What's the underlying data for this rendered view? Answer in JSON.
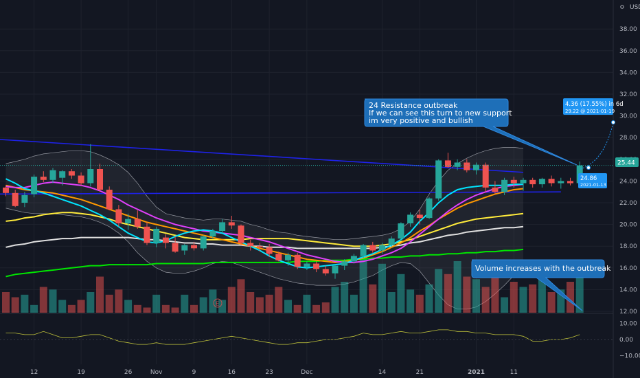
{
  "chart_data": {
    "type": "candlestick",
    "currency": "USD",
    "y_ticks": [
      38,
      36,
      34,
      32,
      30,
      28,
      26,
      24,
      22,
      20,
      18,
      16,
      14,
      12
    ],
    "y_tick_labels": [
      "38.00",
      "36.00",
      "34.00",
      "32.00",
      "30.00",
      "28.00",
      "26.00",
      "24.00",
      "22.00",
      "20.00",
      "18.00",
      "16.00",
      "14.00",
      "12.00"
    ],
    "osc_ticks": [
      10,
      0,
      -10
    ],
    "osc_tick_labels": [
      "10.00",
      "0.00",
      "−10.00"
    ],
    "x_tick_labels": [
      {
        "i": 3,
        "label": "12"
      },
      {
        "i": 8,
        "label": "19"
      },
      {
        "i": 13,
        "label": "26"
      },
      {
        "i": 16,
        "label": "Nov"
      },
      {
        "i": 20,
        "label": "9"
      },
      {
        "i": 24,
        "label": "16"
      },
      {
        "i": 28,
        "label": "23"
      },
      {
        "i": 32,
        "label": "Dec"
      },
      {
        "i": 40,
        "label": "14"
      },
      {
        "i": 44,
        "label": "21"
      },
      {
        "i": 50,
        "label": "2021",
        "bold": true
      },
      {
        "i": 54,
        "label": "11"
      }
    ],
    "candles": [
      [
        23.4,
        23.6,
        22.6,
        22.9
      ],
      [
        22.9,
        23.2,
        21.6,
        21.7
      ],
      [
        22.0,
        23.0,
        21.6,
        22.7
      ],
      [
        22.8,
        24.6,
        22.5,
        24.4
      ],
      [
        24.4,
        24.9,
        23.9,
        24.1
      ],
      [
        24.1,
        25.2,
        23.8,
        25.0
      ],
      [
        24.3,
        25.0,
        23.6,
        24.9
      ],
      [
        24.9,
        25.1,
        24.2,
        24.5
      ],
      [
        24.5,
        24.8,
        23.6,
        23.8
      ],
      [
        23.8,
        27.4,
        23.5,
        25.1
      ],
      [
        25.1,
        25.6,
        23.0,
        23.2
      ],
      [
        23.2,
        23.5,
        21.3,
        21.4
      ],
      [
        21.4,
        21.8,
        19.8,
        20.1
      ],
      [
        20.1,
        21.0,
        19.5,
        20.5
      ],
      [
        20.5,
        21.3,
        19.6,
        19.8
      ],
      [
        19.8,
        20.2,
        18.1,
        18.3
      ],
      [
        18.3,
        19.8,
        17.9,
        19.6
      ],
      [
        18.8,
        19.1,
        17.8,
        18.3
      ],
      [
        18.3,
        18.9,
        17.4,
        17.5
      ],
      [
        17.6,
        18.2,
        17.2,
        18.1
      ],
      [
        18.1,
        18.4,
        17.6,
        17.8
      ],
      [
        17.8,
        19.0,
        17.6,
        18.9
      ],
      [
        18.9,
        19.6,
        18.7,
        19.4
      ],
      [
        19.4,
        20.5,
        19.2,
        20.2
      ],
      [
        20.2,
        20.8,
        19.6,
        19.9
      ],
      [
        19.9,
        20.0,
        18.1,
        18.3
      ],
      [
        18.3,
        18.6,
        17.6,
        18.0
      ],
      [
        18.0,
        18.3,
        17.5,
        17.9
      ],
      [
        17.9,
        18.2,
        17.0,
        17.3
      ],
      [
        17.3,
        17.5,
        16.6,
        16.7
      ],
      [
        16.7,
        17.4,
        16.2,
        17.2
      ],
      [
        17.2,
        17.4,
        15.9,
        16.1
      ],
      [
        16.1,
        16.6,
        15.8,
        16.4
      ],
      [
        16.4,
        16.6,
        15.6,
        15.9
      ],
      [
        15.9,
        16.2,
        15.3,
        15.5
      ],
      [
        15.5,
        16.3,
        15.0,
        16.2
      ],
      [
        16.2,
        16.8,
        15.8,
        16.6
      ],
      [
        16.6,
        17.3,
        16.4,
        17.1
      ],
      [
        17.1,
        18.2,
        16.9,
        18.1
      ],
      [
        18.1,
        18.4,
        17.4,
        17.6
      ],
      [
        17.6,
        18.3,
        17.3,
        18.1
      ],
      [
        18.1,
        18.9,
        17.9,
        18.7
      ],
      [
        18.7,
        20.2,
        18.5,
        20.1
      ],
      [
        20.1,
        21.1,
        19.8,
        20.9
      ],
      [
        20.9,
        21.4,
        20.0,
        20.6
      ],
      [
        20.6,
        22.5,
        20.5,
        22.4
      ],
      [
        22.4,
        26.0,
        22.2,
        25.9
      ],
      [
        25.9,
        26.6,
        25.2,
        25.3
      ],
      [
        25.3,
        26.0,
        25.0,
        25.7
      ],
      [
        25.7,
        26.0,
        24.8,
        25.0
      ],
      [
        25.0,
        25.7,
        24.6,
        25.5
      ],
      [
        25.5,
        25.7,
        23.0,
        23.4
      ],
      [
        23.4,
        24.0,
        22.8,
        23.0
      ],
      [
        23.0,
        24.3,
        22.7,
        24.1
      ],
      [
        24.1,
        24.4,
        23.4,
        23.8
      ],
      [
        23.8,
        24.3,
        23.1,
        24.1
      ],
      [
        24.1,
        24.3,
        23.4,
        23.7
      ],
      [
        23.7,
        24.3,
        23.4,
        24.2
      ],
      [
        24.2,
        24.5,
        23.5,
        23.8
      ],
      [
        23.8,
        24.3,
        23.3,
        24.0
      ],
      [
        24.0,
        24.3,
        23.6,
        23.8
      ],
      [
        23.8,
        25.8,
        23.6,
        25.44
      ]
    ],
    "volume": [
      11.7,
      11.5,
      11.6,
      11.2,
      11.9,
      11.8,
      11.4,
      11.2,
      11.4,
      11.7,
      12.3,
      11.6,
      11.8,
      11.4,
      11.2,
      11.1,
      11.6,
      11.2,
      11.1,
      11.6,
      11.2,
      11.5,
      11.8,
      11.4,
      11.9,
      12.2,
      11.7,
      11.5,
      11.6,
      11.9,
      11.4,
      11.2,
      11.6,
      11.2,
      11.3,
      11.9,
      12.1,
      11.6,
      13.1,
      12.0,
      12.8,
      11.7,
      12.4,
      11.8,
      11.6,
      12.0,
      12.6,
      12.4,
      12.9,
      12.3,
      12.2,
      11.9,
      12.6,
      11.5,
      12.1,
      11.9,
      12.0,
      12.2,
      11.7,
      11.8,
      12.1,
      12.4
    ],
    "volume_max": 12.5,
    "moving_averages": [
      {
        "color": "#00e5ff",
        "values": [
          24.2,
          23.8,
          23.3,
          23.1,
          22.9,
          22.6,
          22.3,
          22.0,
          21.7,
          21.3,
          20.9,
          20.4,
          19.8,
          19.2,
          18.8,
          18.4,
          18.3,
          18.5,
          18.9,
          19.2,
          19.4,
          19.5,
          19.4,
          19.2,
          18.8,
          18.4,
          18.0,
          17.6,
          17.1,
          16.7,
          16.4,
          16.1,
          16.0,
          16.1,
          16.2,
          16.3,
          16.4,
          16.7,
          17.0,
          17.3,
          17.7,
          18.1,
          18.6,
          19.3,
          20.3,
          21.1,
          22.0,
          22.7,
          23.2,
          23.4,
          23.5,
          23.6,
          23.6,
          23.6,
          23.7,
          23.7
        ]
      },
      {
        "color": "#e040fb",
        "values": [
          23.5,
          23.4,
          23.4,
          23.6,
          23.8,
          23.9,
          23.8,
          23.7,
          23.6,
          23.4,
          23.1,
          22.7,
          22.3,
          21.8,
          21.4,
          21.0,
          20.6,
          20.3,
          20.0,
          19.8,
          19.6,
          19.4,
          19.3,
          19.2,
          19.1,
          19.0,
          18.8,
          18.6,
          18.4,
          18.1,
          17.8,
          17.5,
          17.2,
          17.0,
          16.8,
          16.6,
          16.5,
          16.5,
          16.6,
          16.8,
          17.1,
          17.4,
          17.8,
          18.4,
          19.1,
          19.8,
          20.5,
          21.2,
          21.8,
          22.3,
          22.7,
          23.0,
          23.3,
          23.5,
          23.6,
          23.7
        ]
      },
      {
        "color": "#ff9800",
        "values": [
          23.6,
          23.4,
          23.2,
          23.1,
          23.0,
          22.9,
          22.7,
          22.5,
          22.3,
          22.0,
          21.7,
          21.4,
          21.1,
          20.8,
          20.5,
          20.2,
          20.0,
          19.8,
          19.6,
          19.4,
          19.2,
          19.0,
          18.8,
          18.6,
          18.4,
          18.2,
          18.0,
          17.8,
          17.6,
          17.4,
          17.2,
          17.0,
          16.8,
          16.7,
          16.6,
          16.5,
          16.6,
          16.7,
          16.9,
          17.2,
          17.5,
          17.9,
          18.3,
          18.8,
          19.4,
          19.9,
          20.5,
          21.0,
          21.5,
          21.9,
          22.2,
          22.5,
          22.8,
          23.0,
          23.2,
          23.3
        ]
      },
      {
        "color": "#ffeb3b",
        "values": [
          20.3,
          20.4,
          20.6,
          20.7,
          20.9,
          21.0,
          21.1,
          21.1,
          21.0,
          20.9,
          20.7,
          20.5,
          20.2,
          20.0,
          19.8,
          19.6,
          19.4,
          19.2,
          19.0,
          18.8,
          18.7,
          18.6,
          18.6,
          18.6,
          18.6,
          18.6,
          18.7,
          18.7,
          18.7,
          18.7,
          18.7,
          18.6,
          18.5,
          18.4,
          18.3,
          18.2,
          18.1,
          18.0,
          18.0,
          18.0,
          18.1,
          18.2,
          18.4,
          18.6,
          18.9,
          19.2,
          19.5,
          19.8,
          20.1,
          20.3,
          20.5,
          20.6,
          20.7,
          20.8,
          20.9,
          21.0
        ]
      },
      {
        "color": "#e0e0e0",
        "values": [
          17.9,
          18.1,
          18.2,
          18.4,
          18.5,
          18.6,
          18.7,
          18.7,
          18.8,
          18.8,
          18.8,
          18.8,
          18.8,
          18.8,
          18.7,
          18.6,
          18.6,
          18.5,
          18.4,
          18.3,
          18.3,
          18.2,
          18.2,
          18.1,
          18.1,
          18.1,
          18.0,
          18.0,
          17.9,
          17.9,
          17.9,
          17.8,
          17.8,
          17.8,
          17.8,
          17.8,
          17.8,
          17.8,
          17.8,
          17.8,
          17.9,
          18.0,
          18.1,
          18.3,
          18.4,
          18.6,
          18.8,
          19.0,
          19.1,
          19.3,
          19.4,
          19.5,
          19.6,
          19.7,
          19.7,
          19.8
        ]
      },
      {
        "color": "#00e600",
        "values": [
          15.2,
          15.4,
          15.5,
          15.6,
          15.7,
          15.8,
          15.9,
          16.0,
          16.1,
          16.2,
          16.2,
          16.3,
          16.3,
          16.3,
          16.3,
          16.3,
          16.4,
          16.4,
          16.4,
          16.4,
          16.4,
          16.4,
          16.5,
          16.5,
          16.5,
          16.5,
          16.5,
          16.5,
          16.5,
          16.5,
          16.5,
          16.6,
          16.6,
          16.6,
          16.7,
          16.7,
          16.7,
          16.8,
          16.8,
          16.9,
          16.9,
          17.0,
          17.0,
          17.1,
          17.1,
          17.2,
          17.2,
          17.3,
          17.3,
          17.4,
          17.4,
          17.5,
          17.5,
          17.6,
          17.6,
          17.7
        ]
      }
    ],
    "bollinger_upper": [
      25.6,
      25.8,
      26.0,
      26.3,
      26.5,
      26.6,
      26.7,
      26.8,
      26.8,
      26.7,
      26.4,
      26.0,
      25.5,
      24.8,
      23.8,
      22.6,
      21.6,
      21.0,
      20.8,
      20.6,
      20.5,
      20.4,
      20.5,
      20.5,
      20.4,
      20.3,
      20.0,
      19.8,
      19.5,
      19.3,
      19.2,
      19.0,
      18.9,
      18.8,
      18.7,
      18.6,
      18.6,
      18.7,
      18.8,
      18.9,
      19.0,
      19.2,
      19.6,
      20.3,
      21.4,
      22.8,
      24.0,
      25.0,
      25.6,
      26.1,
      26.5,
      26.8,
      27.0,
      27.1,
      27.1,
      27.0
    ],
    "bollinger_lower": [
      21.5,
      21.3,
      21.1,
      21.0,
      21.0,
      21.0,
      20.9,
      20.8,
      20.7,
      20.5,
      20.2,
      19.8,
      19.2,
      18.4,
      17.4,
      16.6,
      16.0,
      15.6,
      15.5,
      15.5,
      15.7,
      16.0,
      16.4,
      16.6,
      16.5,
      16.2,
      15.9,
      15.6,
      15.3,
      15.0,
      14.8,
      14.6,
      14.5,
      14.4,
      14.4,
      14.4,
      14.5,
      14.7,
      15.0,
      15.3,
      15.8,
      16.2,
      16.5,
      16.4,
      15.7,
      14.6,
      13.5,
      12.6,
      12.2,
      12.2,
      12.4,
      12.9,
      13.6,
      14.4,
      15.3,
      16.2
    ]
  },
  "resistance_lines": [
    {
      "from": [
        -2,
        27.9
      ],
      "to": [
        55,
        24.8
      ]
    },
    {
      "from": [
        -2,
        22.8
      ],
      "to": [
        59,
        23.0
      ]
    }
  ],
  "price_label": "25.44",
  "currency_label": "USD",
  "annotations": {
    "resistance": [
      "24 Resistance outbreak",
      "If we can see this turn to new support",
      "im very positive and bullish"
    ],
    "volume": "Volume increases with the outbreak",
    "projection_line1": "4.36 (17.55%) in 6d",
    "projection_line2": "29.22 @ 2021-01-19",
    "point_value": "24.86",
    "point_date": "2021-01-13"
  },
  "oscillator": [
    4,
    4,
    3,
    3,
    5,
    3,
    1,
    1,
    2,
    3,
    3,
    1,
    -1,
    -2,
    -3,
    -3,
    -2,
    -3,
    -3,
    -3,
    -2,
    -1,
    0,
    1,
    2,
    1,
    0,
    -1,
    -2,
    -3,
    -3,
    -2,
    -2,
    -1,
    0,
    0,
    1,
    2,
    4,
    3,
    3,
    4,
    5,
    4,
    4,
    5,
    6,
    6,
    5,
    5,
    4,
    4,
    3,
    3,
    3,
    2,
    -1,
    -1,
    0,
    0,
    1,
    3
  ]
}
